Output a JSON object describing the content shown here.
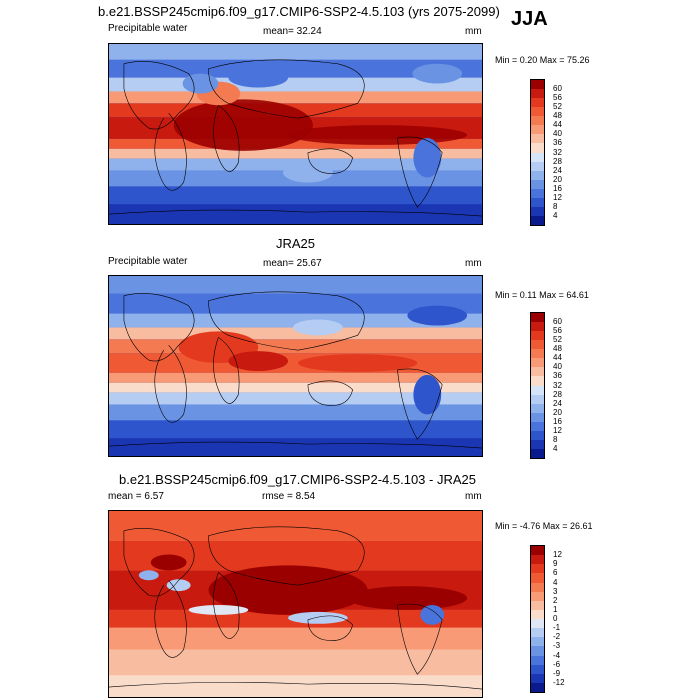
{
  "season": "JJA",
  "panels": [
    {
      "header": "b.e21.BSSP245cmip6.f09_g17.CMIP6-SSP2-4.5.103 (yrs 2075-2099)",
      "var_label": "Precipitable water",
      "stat_label": "mean=  32.24",
      "units": "mm",
      "minmax": "Min =   0.20 Max =  75.26",
      "levels": [
        "60",
        "56",
        "52",
        "48",
        "44",
        "40",
        "36",
        "32",
        "28",
        "24",
        "20",
        "16",
        "12",
        "8",
        "4"
      ],
      "colors": [
        "#9b0000",
        "#c81a0f",
        "#e33a1f",
        "#ef5a35",
        "#f47a52",
        "#f79a75",
        "#f8bca0",
        "#fadccb",
        "#d6e4f7",
        "#b5cdf2",
        "#8fb1ec",
        "#6b93e3",
        "#4a74db",
        "#2f55cd",
        "#1a36b3",
        "#0a1a8c"
      ]
    },
    {
      "header": "JRA25",
      "var_label": "Precipitable water",
      "stat_label": "mean=  25.67",
      "units": "mm",
      "minmax": "Min =   0.11 Max =  64.61",
      "levels": [
        "60",
        "56",
        "52",
        "48",
        "44",
        "40",
        "36",
        "32",
        "28",
        "24",
        "20",
        "16",
        "12",
        "8",
        "4"
      ],
      "colors": [
        "#9b0000",
        "#c81a0f",
        "#e33a1f",
        "#ef5a35",
        "#f47a52",
        "#f79a75",
        "#f8bca0",
        "#fadccb",
        "#d6e4f7",
        "#b5cdf2",
        "#8fb1ec",
        "#6b93e3",
        "#4a74db",
        "#2f55cd",
        "#1a36b3",
        "#0a1a8c"
      ]
    },
    {
      "header": "b.e21.BSSP245cmip6.f09_g17.CMIP6-SSP2-4.5.103 - JRA25",
      "var_label": "mean =   6.57",
      "stat_label": "rmse =   8.54",
      "units": "mm",
      "minmax": "Min =  -4.76 Max =  26.61",
      "levels": [
        "12",
        "9",
        "6",
        "4",
        "3",
        "2",
        "1",
        "0",
        "-1",
        "-2",
        "-3",
        "-4",
        "-6",
        "-9",
        "-12"
      ],
      "colors": [
        "#9b0000",
        "#c81a0f",
        "#e33a1f",
        "#ef5a35",
        "#f47a52",
        "#f79a75",
        "#f8bca0",
        "#fadccb",
        "#dfe7f5",
        "#b5cdf2",
        "#8fb1ec",
        "#6b93e3",
        "#4a74db",
        "#2f55cd",
        "#1a36b3",
        "#0a1a8c"
      ]
    }
  ]
}
